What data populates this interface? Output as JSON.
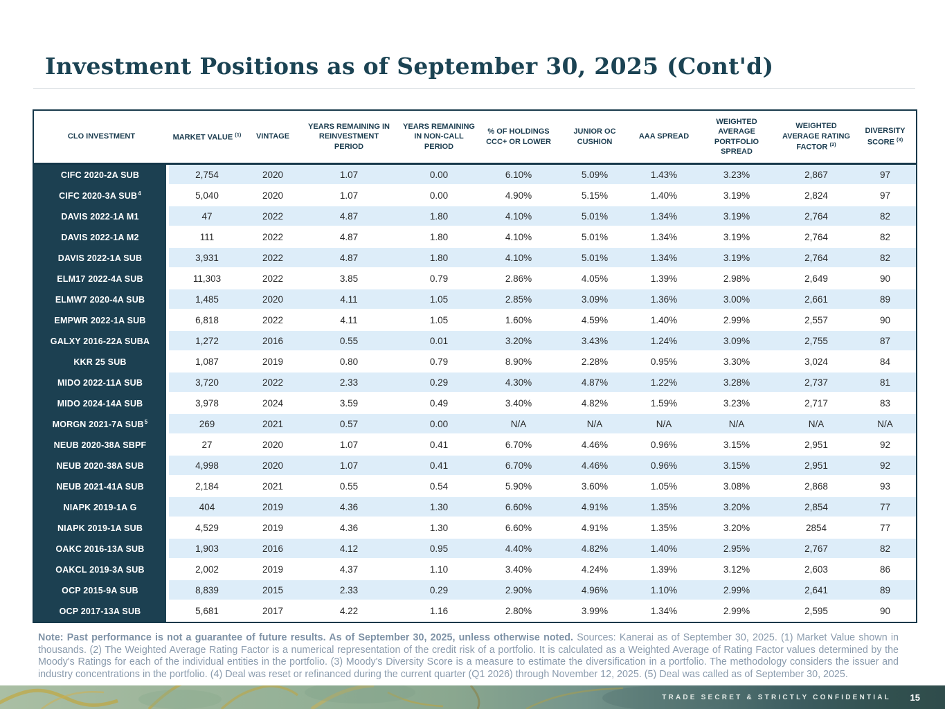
{
  "page": {
    "title": "Investment Positions as of September 30, 2025 (Cont'd)"
  },
  "table": {
    "columns": [
      {
        "label": "CLO INVESTMENT",
        "sup": ""
      },
      {
        "label": "MARKET VALUE",
        "sup": "(1)"
      },
      {
        "label": "VINTAGE",
        "sup": ""
      },
      {
        "label": "YEARS REMAINING IN REINVESTMENT PERIOD",
        "sup": ""
      },
      {
        "label": "YEARS REMAINING IN NON-CALL PERIOD",
        "sup": ""
      },
      {
        "label": "% OF HOLDINGS CCC+ OR LOWER",
        "sup": ""
      },
      {
        "label": "JUNIOR OC CUSHION",
        "sup": ""
      },
      {
        "label": "AAA SPREAD",
        "sup": ""
      },
      {
        "label": "WEIGHTED AVERAGE PORTFOLIO SPREAD",
        "sup": ""
      },
      {
        "label": "WEIGHTED AVERAGE RATING FACTOR",
        "sup": "(2)"
      },
      {
        "label": "DIVERSITY SCORE",
        "sup": "(3)"
      }
    ],
    "rows": [
      {
        "name": "CIFC 2020-2A SUB",
        "sup": "",
        "values": [
          "2,754",
          "2020",
          "1.07",
          "0.00",
          "6.10%",
          "5.09%",
          "1.43%",
          "3.23%",
          "2,867",
          "97"
        ]
      },
      {
        "name": "CIFC 2020-3A SUB",
        "sup": "4",
        "values": [
          "5,040",
          "2020",
          "1.07",
          "0.00",
          "4.90%",
          "5.15%",
          "1.40%",
          "3.19%",
          "2,824",
          "97"
        ]
      },
      {
        "name": "DAVIS 2022-1A M1",
        "sup": "",
        "values": [
          "47",
          "2022",
          "4.87",
          "1.80",
          "4.10%",
          "5.01%",
          "1.34%",
          "3.19%",
          "2,764",
          "82"
        ]
      },
      {
        "name": "DAVIS 2022-1A M2",
        "sup": "",
        "values": [
          "111",
          "2022",
          "4.87",
          "1.80",
          "4.10%",
          "5.01%",
          "1.34%",
          "3.19%",
          "2,764",
          "82"
        ]
      },
      {
        "name": "DAVIS 2022-1A SUB",
        "sup": "",
        "values": [
          "3,931",
          "2022",
          "4.87",
          "1.80",
          "4.10%",
          "5.01%",
          "1.34%",
          "3.19%",
          "2,764",
          "82"
        ]
      },
      {
        "name": "ELM17 2022-4A SUB",
        "sup": "",
        "values": [
          "11,303",
          "2022",
          "3.85",
          "0.79",
          "2.86%",
          "4.05%",
          "1.39%",
          "2.98%",
          "2,649",
          "90"
        ]
      },
      {
        "name": "ELMW7 2020-4A SUB",
        "sup": "",
        "values": [
          "1,485",
          "2020",
          "4.11",
          "1.05",
          "2.85%",
          "3.09%",
          "1.36%",
          "3.00%",
          "2,661",
          "89"
        ]
      },
      {
        "name": "EMPWR 2022-1A SUB",
        "sup": "",
        "values": [
          "6,818",
          "2022",
          "4.11",
          "1.05",
          "1.60%",
          "4.59%",
          "1.40%",
          "2.99%",
          "2,557",
          "90"
        ]
      },
      {
        "name": "GALXY 2016-22A SUBA",
        "sup": "",
        "values": [
          "1,272",
          "2016",
          "0.55",
          "0.01",
          "3.20%",
          "3.43%",
          "1.24%",
          "3.09%",
          "2,755",
          "87"
        ]
      },
      {
        "name": "KKR 25 SUB",
        "sup": "",
        "values": [
          "1,087",
          "2019",
          "0.80",
          "0.79",
          "8.90%",
          "2.28%",
          "0.95%",
          "3.30%",
          "3,024",
          "84"
        ]
      },
      {
        "name": "MIDO 2022-11A SUB",
        "sup": "",
        "values": [
          "3,720",
          "2022",
          "2.33",
          "0.29",
          "4.30%",
          "4.87%",
          "1.22%",
          "3.28%",
          "2,737",
          "81"
        ]
      },
      {
        "name": "MIDO 2024-14A SUB",
        "sup": "",
        "values": [
          "3,978",
          "2024",
          "3.59",
          "0.49",
          "3.40%",
          "4.82%",
          "1.59%",
          "3.23%",
          "2,717",
          "83"
        ]
      },
      {
        "name": "MORGN 2021-7A SUB",
        "sup": "5",
        "values": [
          "269",
          "2021",
          "0.57",
          "0.00",
          "N/A",
          "N/A",
          "N/A",
          "N/A",
          "N/A",
          "N/A"
        ]
      },
      {
        "name": "NEUB 2020-38A SBPF",
        "sup": "",
        "values": [
          "27",
          "2020",
          "1.07",
          "0.41",
          "6.70%",
          "4.46%",
          "0.96%",
          "3.15%",
          "2,951",
          "92"
        ]
      },
      {
        "name": "NEUB 2020-38A SUB",
        "sup": "",
        "values": [
          "4,998",
          "2020",
          "1.07",
          "0.41",
          "6.70%",
          "4.46%",
          "0.96%",
          "3.15%",
          "2,951",
          "92"
        ]
      },
      {
        "name": "NEUB 2021-41A SUB",
        "sup": "",
        "values": [
          "2,184",
          "2021",
          "0.55",
          "0.54",
          "5.90%",
          "3.60%",
          "1.05%",
          "3.08%",
          "2,868",
          "93"
        ]
      },
      {
        "name": "NIAPK 2019-1A G",
        "sup": "",
        "values": [
          "404",
          "2019",
          "4.36",
          "1.30",
          "6.60%",
          "4.91%",
          "1.35%",
          "3.20%",
          "2,854",
          "77"
        ]
      },
      {
        "name": "NIAPK 2019-1A SUB",
        "sup": "",
        "values": [
          "4,529",
          "2019",
          "4.36",
          "1.30",
          "6.60%",
          "4.91%",
          "1.35%",
          "3.20%",
          "2854",
          "77"
        ]
      },
      {
        "name": "OAKC 2016-13A SUB",
        "sup": "",
        "values": [
          "1,903",
          "2016",
          "4.12",
          "0.95",
          "4.40%",
          "4.82%",
          "1.40%",
          "2.95%",
          "2,767",
          "82"
        ]
      },
      {
        "name": "OAKCL 2019-3A SUB",
        "sup": "",
        "values": [
          "2,002",
          "2019",
          "4.37",
          "1.10",
          "3.40%",
          "4.24%",
          "1.39%",
          "3.12%",
          "2,603",
          "86"
        ]
      },
      {
        "name": "OCP 2015-9A SUB",
        "sup": "",
        "values": [
          "8,839",
          "2015",
          "2.33",
          "0.29",
          "2.90%",
          "4.96%",
          "1.10%",
          "2.99%",
          "2,641",
          "89"
        ]
      },
      {
        "name": "OCP 2017-13A SUB",
        "sup": "",
        "values": [
          "5,681",
          "2017",
          "4.22",
          "1.16",
          "2.80%",
          "3.99%",
          "1.34%",
          "2.99%",
          "2,595",
          "90"
        ]
      }
    ]
  },
  "footnote": {
    "bold": "Note: Past performance is not a guarantee of future results. As of September 30, 2025, unless otherwise noted.",
    "regular": " Sources: Kanerai as of September 30, 2025. (1) Market Value shown in thousands. (2) The Weighted Average Rating Factor is a numerical representation of the credit risk of a portfolio. It is calculated as a Weighted Average of Rating Factor values determined by the Moody's Ratings for each of the individual entities in the portfolio. (3) Moody's Diversity Score is a measure to estimate the diversification in a portfolio. The methodology considers the issuer and industry concentrations in the portfolio. (4) Deal was reset or refinanced during the current quarter (Q1 2026) through November 12, 2025. (5) Deal was called as of September 30, 2025."
  },
  "footer": {
    "confidential": "TRADE SECRET & STRICTLY CONFIDENTIAL",
    "page": "15"
  },
  "colors": {
    "title": "#1b4353",
    "header_text": "#1b3c4f",
    "name_column_bg": "#1c4051",
    "band_blue": "#ddedf9",
    "footnote_text": "#8a9bad",
    "footer_dark": "#2f4c4b",
    "footer_sage": "#9db59b",
    "gold_vein": "#c9a227"
  }
}
